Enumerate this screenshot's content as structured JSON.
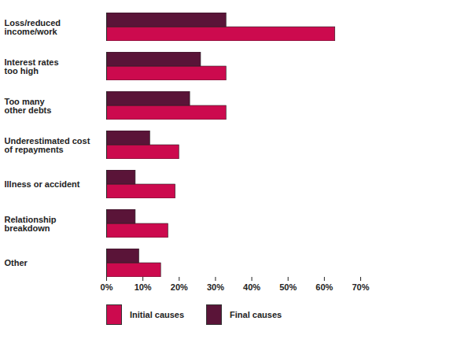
{
  "chart_data": {
    "type": "bar",
    "orientation": "horizontal",
    "categories": [
      "Loss/reduced\nincome/work",
      "Interest rates\ntoo high",
      "Too many\nother debts",
      "Underestimated cost\nof repayments",
      "Illness or accident",
      "Relationship\nbreakdown",
      "Other"
    ],
    "series": [
      {
        "name": "Initial causes",
        "color": "#cc0a4e",
        "values": [
          63,
          33,
          33,
          20,
          19,
          17,
          15
        ]
      },
      {
        "name": "Final causes",
        "color": "#5a1438",
        "values": [
          33,
          26,
          23,
          12,
          8,
          8,
          9
        ]
      }
    ],
    "xlim": [
      0,
      70
    ],
    "xticks": [
      {
        "value": 0,
        "label": "0%"
      },
      {
        "value": 10,
        "label": "10%"
      },
      {
        "value": 20,
        "label": "20%"
      },
      {
        "value": 30,
        "label": "30%"
      },
      {
        "value": 40,
        "label": "40%"
      },
      {
        "value": 50,
        "label": "50%"
      },
      {
        "value": 60,
        "label": "60%"
      },
      {
        "value": 70,
        "label": "70%"
      }
    ],
    "grid": false,
    "legend": "bottom"
  }
}
